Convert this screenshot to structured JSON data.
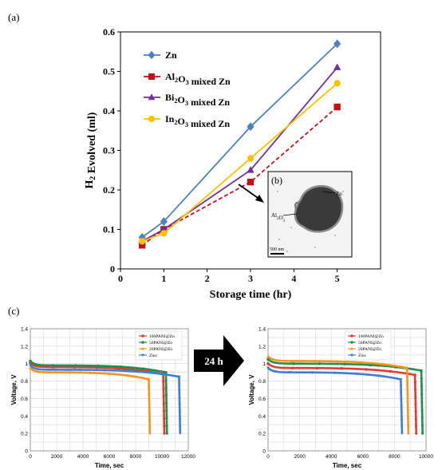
{
  "panels": {
    "a": "(a)",
    "c": "(c)"
  },
  "arrow_label": "24 h",
  "chart_data": [
    {
      "type": "line",
      "panel": "(a)",
      "xlabel": "Storage time (hr)",
      "ylabel": "H2 Evolved (ml)",
      "xlim": [
        0,
        6
      ],
      "ylim": [
        0,
        0.6
      ],
      "xticks": [
        "0",
        "1",
        "2",
        "3",
        "4",
        "5"
      ],
      "yticks": [
        "0",
        "0.1",
        "0.2",
        "0.3",
        "0.4",
        "0.5",
        "0.6"
      ],
      "legend_position": "top-left",
      "grid": false,
      "x": [
        0.5,
        1,
        3,
        5
      ],
      "series": [
        {
          "name": "Zn",
          "values": [
            0.08,
            0.12,
            0.36,
            0.57
          ],
          "color": "#4f81bd",
          "marker": "diamond",
          "dash": false
        },
        {
          "name": "Al2O3 mixed Zn",
          "values": [
            0.06,
            0.1,
            0.22,
            0.41
          ],
          "color": "#c0121b",
          "marker": "square",
          "dash": true
        },
        {
          "name": "Bi2O3 mixed Zn",
          "values": [
            0.07,
            0.1,
            0.25,
            0.51
          ],
          "color": "#7030a0",
          "marker": "triangle",
          "dash": false
        },
        {
          "name": "In2O3 mixed Zn",
          "values": [
            0.07,
            0.09,
            0.28,
            0.47
          ],
          "color": "#ffc000",
          "marker": "circle",
          "dash": false
        }
      ],
      "inset": {
        "label": "(b)",
        "annotations": [
          "Zn",
          "Al2O3"
        ],
        "scale_bar": "500 nm"
      }
    },
    {
      "type": "line",
      "panel": "(c) left",
      "xlabel": "Time, sec",
      "ylabel": "Voltage, V",
      "xlim": [
        0,
        12000
      ],
      "ylim": [
        0,
        1.4
      ],
      "xticks": [
        "0",
        "2000",
        "4000",
        "6000",
        "8000",
        "10000",
        "12000"
      ],
      "yticks": [
        "0",
        "0.2",
        "0.4",
        "0.6",
        "0.8",
        "1",
        "1.2",
        "1.4"
      ],
      "legend_position": "top-right",
      "grid": true,
      "series": [
        {
          "name": "100PANI@Zn",
          "color": "#e03c31",
          "marker": "circle",
          "plateau": 0.96,
          "end": 10100
        },
        {
          "name": "50PANI@Zn",
          "color": "#1e8f4e",
          "marker": "circle",
          "plateau": 0.98,
          "end": 10300
        },
        {
          "name": "20PANI@Zn",
          "color": "#f7941d",
          "marker": "triangle",
          "plateau": 0.9,
          "end": 9000
        },
        {
          "name": "Zinc",
          "color": "#3b7dd8",
          "marker": "triangle-down",
          "plateau": 0.93,
          "end": 11300
        }
      ]
    },
    {
      "type": "line",
      "panel": "(c) right",
      "xlabel": "Time, sec",
      "ylabel": "Voltage, V",
      "xlim": [
        0,
        10000
      ],
      "ylim": [
        0,
        1.4
      ],
      "xticks": [
        "0",
        "2000",
        "4000",
        "6000",
        "8000",
        "10000"
      ],
      "yticks": [
        "0",
        "0.2",
        "0.4",
        "0.6",
        "0.8",
        "1",
        "1.2",
        "1.4"
      ],
      "legend_position": "top-left",
      "grid": true,
      "series": [
        {
          "name": "100PANI@Zn",
          "color": "#e03c31",
          "marker": "circle",
          "plateau": 0.95,
          "end": 9300
        },
        {
          "name": "50PANI@Zn",
          "color": "#1e8f4e",
          "marker": "circle",
          "plateau": 1.0,
          "end": 9700
        },
        {
          "name": "20PANI@Zn",
          "color": "#f7941d",
          "marker": "triangle",
          "plateau": 1.03,
          "end": 8800
        },
        {
          "name": "Zinc",
          "color": "#3b7dd8",
          "marker": "triangle-down",
          "plateau": 0.9,
          "end": 8400
        }
      ]
    }
  ]
}
